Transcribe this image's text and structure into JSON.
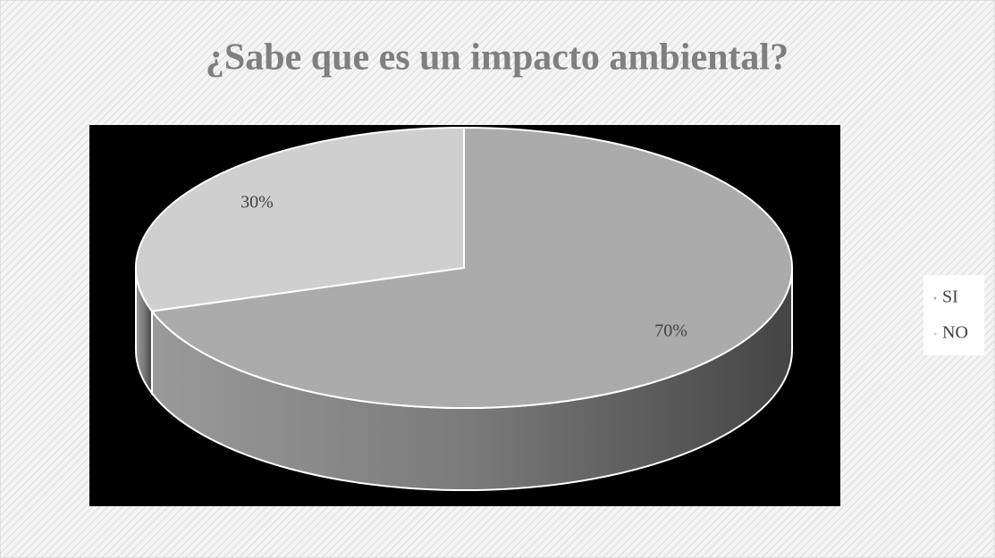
{
  "chart_data": {
    "type": "pie",
    "title": "¿Sabe que es un impacto ambiental?",
    "categories": [
      "SI",
      "NO"
    ],
    "values": [
      70,
      30
    ],
    "value_labels": [
      "70%",
      "30%"
    ],
    "colors": [
      "#ababab",
      "#cfcfcf"
    ],
    "legend": "right"
  }
}
